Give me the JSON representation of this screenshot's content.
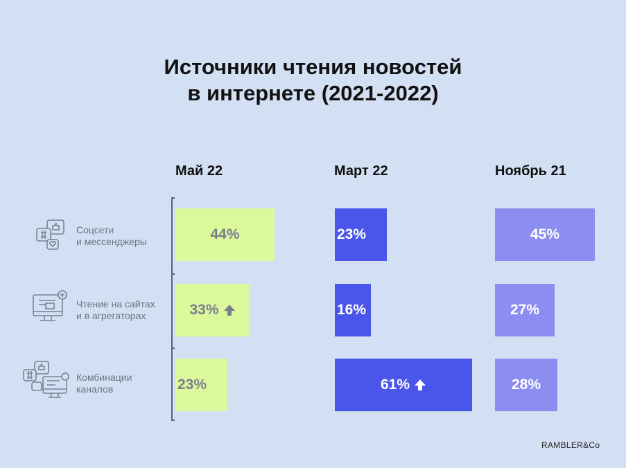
{
  "title_line1": "Источники чтения новостей",
  "title_line2": "в интернете (2021-2022)",
  "logo": "RAMBLER&Co",
  "colors": {
    "may": "#dbf99a",
    "march": "#4a56ea",
    "november": "#8b8ef0",
    "may_text": "#7a7f90",
    "white_text": "#ffffff"
  },
  "chart_data": {
    "type": "bar",
    "orientation": "horizontal",
    "title": "Источники чтения новостей в интернете (2021-2022)",
    "categories": [
      "Соцсети и мессенджеры",
      "Чтение на сайтах и в агрегаторах",
      "Комбинации каналов"
    ],
    "category_lines": [
      [
        "Соцсети",
        "и мессенджеры"
      ],
      [
        "Чтение на сайтах",
        "и в агрегаторах"
      ],
      [
        "Комбинации",
        "каналов"
      ]
    ],
    "series": [
      {
        "name": "Май 22",
        "values": [
          44,
          33,
          23
        ],
        "labels": [
          "44%",
          "33%",
          "23%"
        ],
        "increase": [
          false,
          true,
          false
        ]
      },
      {
        "name": "Март 22",
        "values": [
          23,
          16,
          61
        ],
        "labels": [
          "23%",
          "16%",
          "61%"
        ],
        "increase": [
          false,
          false,
          true
        ]
      },
      {
        "name": "Ноябрь 21",
        "values": [
          45,
          27,
          28
        ],
        "labels": [
          "45%",
          "27%",
          "28%"
        ],
        "increase": [
          false,
          false,
          false
        ]
      }
    ],
    "unit": "%",
    "legend": "column headers"
  }
}
